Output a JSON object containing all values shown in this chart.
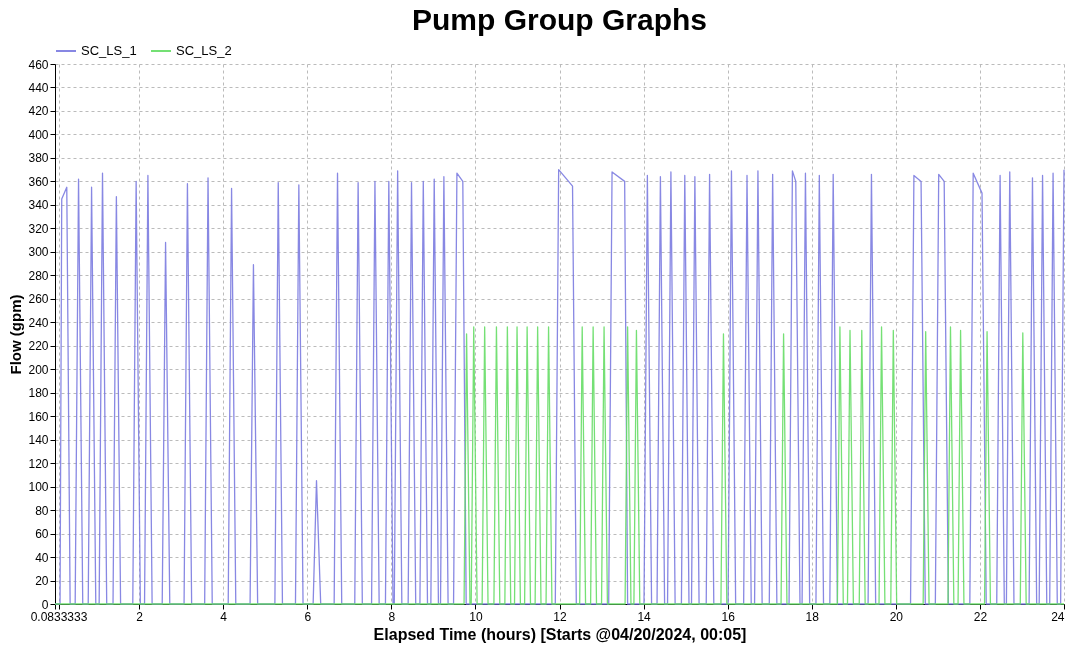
{
  "chart_data": {
    "type": "line",
    "title": "Pump Group Graphs",
    "xlabel": "Elapsed Time (hours) [Starts @04/20/2024, 00:05]",
    "ylabel": "Flow (gpm)",
    "xlim": [
      0,
      24
    ],
    "xticks": [
      {
        "value": 0,
        "label": null
      },
      {
        "value": 0.0833333,
        "label": "0.0833333"
      },
      2,
      4,
      6,
      8,
      10,
      12,
      14,
      16,
      18,
      20,
      22,
      24
    ],
    "ylim": [
      0,
      460
    ],
    "yticks": [
      0,
      20,
      40,
      60,
      80,
      100,
      120,
      140,
      160,
      180,
      200,
      220,
      240,
      260,
      280,
      300,
      320,
      340,
      360,
      380,
      400,
      420,
      440,
      460
    ],
    "grid": true,
    "legend": "top left",
    "line_style": "solid",
    "series": [
      {
        "name": "SC_LS_1",
        "color": "#7b7be0",
        "x": [
          0,
          0.12,
          0.16,
          0.28,
          0.36,
          0.48,
          0.56,
          0.66,
          0.79,
          0.87,
          0.97,
          1.05,
          1.13,
          1.23,
          1.38,
          1.46,
          1.56,
          1.85,
          1.93,
          2.03,
          2.13,
          2.21,
          2.31,
          2.55,
          2.63,
          2.73,
          3.07,
          3.15,
          3.25,
          3.56,
          3.64,
          3.74,
          4.12,
          4.2,
          4.3,
          4.64,
          4.72,
          4.82,
          5.23,
          5.31,
          5.41,
          5.72,
          5.8,
          5.9,
          6.14,
          6.22,
          6.32,
          6.64,
          6.72,
          6.82,
          7.13,
          7.21,
          7.31,
          7.53,
          7.61,
          7.71,
          7.86,
          7.94,
          8.04,
          8.07,
          8.15,
          8.25,
          8.4,
          8.48,
          8.58,
          8.68,
          8.76,
          8.86,
          8.94,
          9.02,
          9.12,
          9.17,
          9.25,
          9.35,
          9.48,
          9.56,
          9.7,
          9.78,
          11.9,
          11.98,
          12.31,
          12.4,
          13.17,
          13.25,
          13.55,
          13.62,
          14.01,
          14.09,
          14.19,
          14.32,
          14.4,
          14.5,
          14.57,
          14.65,
          14.75,
          14.9,
          14.98,
          15.08,
          15.14,
          15.22,
          15.32,
          15.49,
          15.57,
          15.67,
          16.01,
          16.09,
          16.19,
          16.38,
          16.46,
          16.56,
          16.64,
          16.72,
          16.82,
          16.99,
          17.07,
          17.17,
          17.46,
          17.54,
          17.62,
          17.72,
          17.77,
          17.85,
          17.95,
          18.1,
          18.18,
          18.28,
          18.43,
          18.51,
          18.61,
          19.34,
          19.42,
          19.52,
          20.35,
          20.43,
          20.6,
          20.7,
          20.94,
          21.02,
          21.15,
          21.25,
          21.76,
          21.84,
          22.05,
          22.15,
          22.4,
          22.48,
          22.58,
          22.63,
          22.71,
          22.81,
          23.17,
          23.25,
          23.35,
          23.41,
          23.49,
          23.59,
          23.66,
          23.74,
          23.84,
          23.92,
          24
        ],
        "values": [
          0,
          0,
          345,
          355,
          0,
          0,
          362,
          0,
          0,
          355,
          0,
          0,
          367,
          0,
          0,
          347,
          0,
          0,
          360,
          0,
          0,
          365,
          0,
          0,
          308,
          0,
          0,
          358,
          0,
          0,
          363,
          0,
          0,
          354,
          0,
          0,
          289,
          0,
          0,
          359,
          0,
          0,
          357,
          0,
          0,
          105,
          0,
          0,
          367,
          0,
          0,
          359,
          0,
          0,
          360,
          0,
          0,
          360,
          0,
          0,
          369,
          0,
          0,
          359,
          0,
          0,
          360,
          0,
          0,
          362,
          0,
          0,
          364,
          0,
          0,
          367,
          360,
          0,
          0,
          370,
          356,
          0,
          0,
          368,
          360,
          0,
          0,
          365,
          0,
          0,
          364,
          0,
          0,
          368,
          0,
          0,
          365,
          0,
          0,
          364,
          0,
          0,
          366,
          0,
          0,
          369,
          0,
          0,
          365,
          0,
          0,
          369,
          0,
          0,
          366,
          0,
          0,
          369,
          360,
          0,
          0,
          367,
          0,
          0,
          365,
          0,
          0,
          366,
          0,
          0,
          366,
          0,
          0,
          365,
          360,
          0,
          0,
          366,
          360,
          0,
          0,
          367,
          350,
          0,
          0,
          365,
          0,
          0,
          368,
          0,
          0,
          363,
          0,
          0,
          365,
          0,
          0,
          367,
          0,
          0,
          370
        ]
      },
      {
        "name": "SC_LS_2",
        "color": "#66dd66",
        "x": [
          0,
          9.73,
          9.79,
          9.87,
          9.9,
          9.96,
          10.04,
          10.16,
          10.22,
          10.3,
          10.44,
          10.5,
          10.58,
          10.7,
          10.76,
          10.84,
          10.93,
          10.99,
          11.07,
          11.17,
          11.23,
          11.31,
          11.42,
          11.48,
          11.56,
          11.68,
          11.74,
          11.82,
          12.48,
          12.54,
          12.62,
          12.74,
          12.8,
          12.88,
          13.0,
          13.06,
          13.14,
          13.56,
          13.62,
          13.7,
          13.77,
          13.83,
          13.91,
          15.84,
          15.9,
          15.98,
          17.27,
          17.33,
          17.41,
          18.61,
          18.67,
          18.75,
          18.85,
          18.91,
          18.99,
          19.13,
          19.19,
          19.27,
          19.6,
          19.66,
          19.74,
          19.88,
          19.94,
          20.02,
          20.65,
          20.71,
          20.79,
          21.24,
          21.3,
          21.38,
          21.48,
          21.54,
          21.62,
          22.11,
          22.17,
          22.25,
          22.96,
          23.02,
          23.1,
          24
        ],
        "values": [
          0,
          0,
          230,
          0,
          0,
          236,
          0,
          0,
          236,
          0,
          0,
          236,
          0,
          0,
          236,
          0,
          0,
          236,
          0,
          0,
          236,
          0,
          0,
          236,
          0,
          0,
          236,
          0,
          0,
          236,
          0,
          0,
          236,
          0,
          0,
          236,
          0,
          0,
          236,
          0,
          0,
          233,
          0,
          0,
          230,
          0,
          0,
          230,
          0,
          0,
          236,
          0,
          0,
          233,
          0,
          0,
          233,
          0,
          0,
          236,
          0,
          0,
          233,
          0,
          0,
          232,
          0,
          0,
          236,
          0,
          0,
          233,
          0,
          0,
          232,
          0,
          0,
          231,
          0,
          0
        ]
      }
    ]
  }
}
